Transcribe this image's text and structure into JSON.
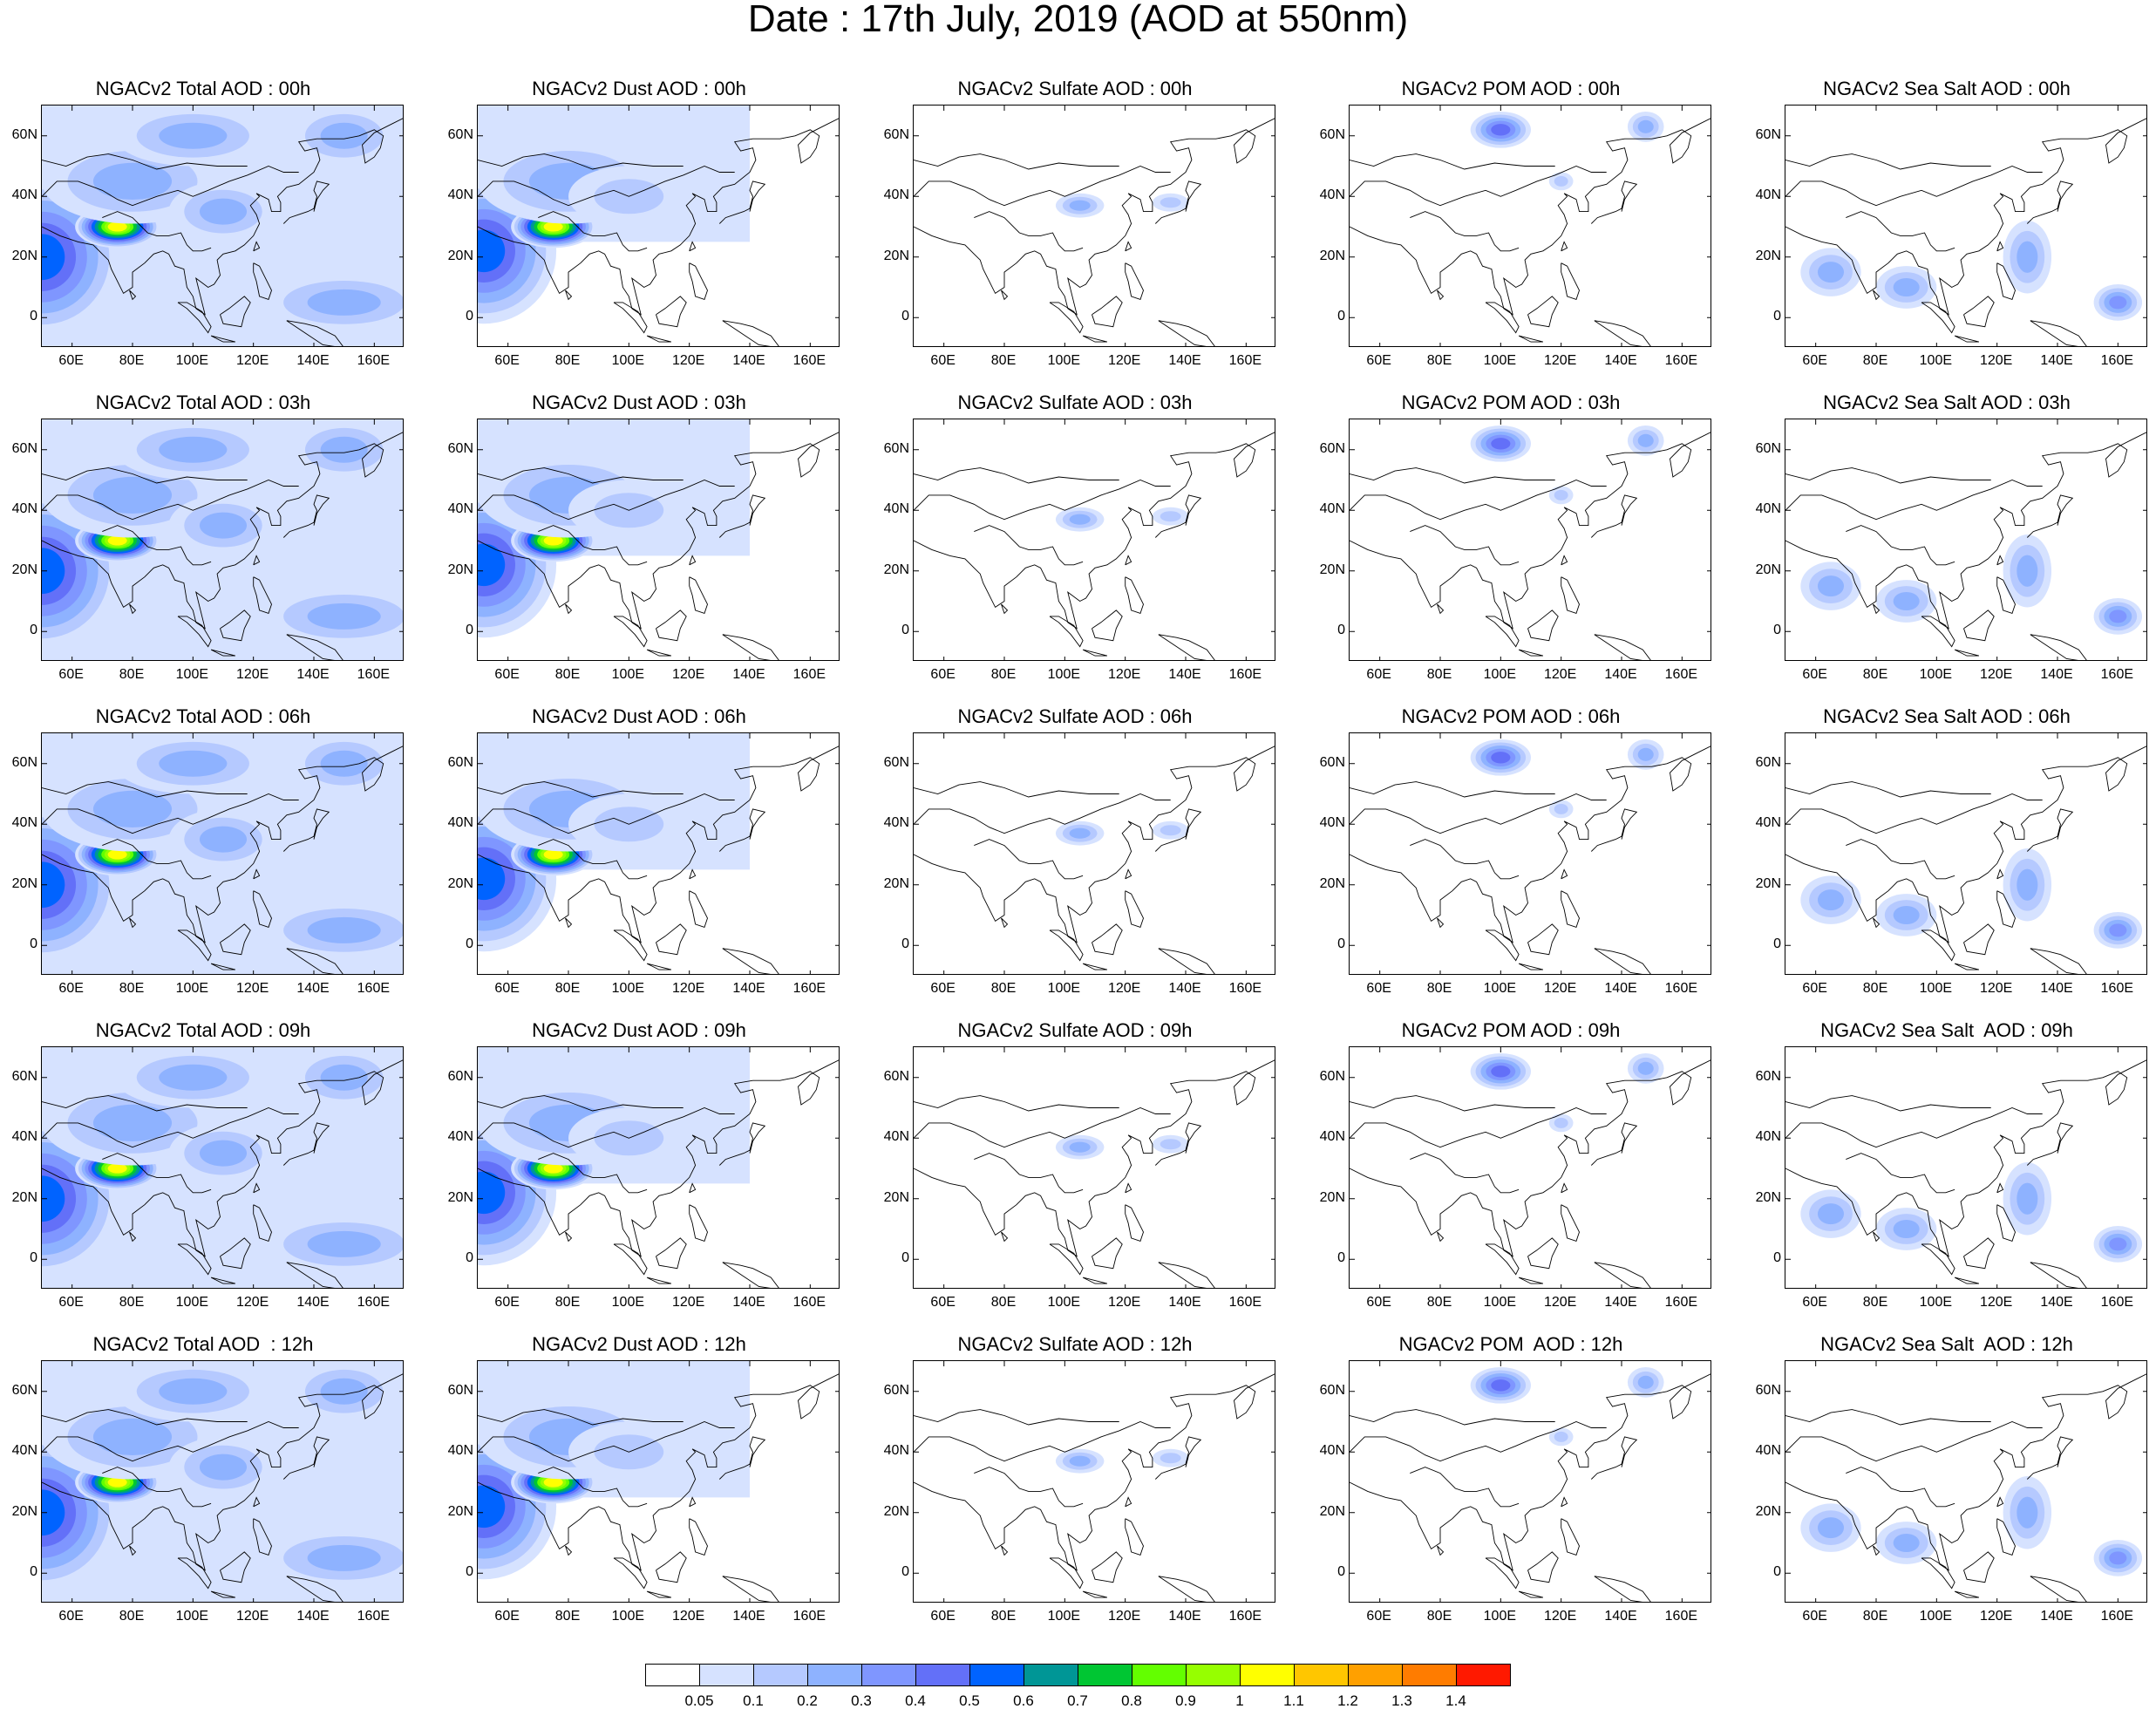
{
  "title": "Date : 17th July, 2019 (AOD at 550nm)",
  "panel_titles": [
    [
      "NGACv2 Total AOD : 00h",
      "NGACv2 Dust AOD : 00h",
      "NGACv2 Sulfate AOD : 00h",
      "NGACv2 POM AOD : 00h",
      "NGACv2 Sea Salt AOD : 00h"
    ],
    [
      "NGACv2 Total AOD : 03h",
      "NGACv2 Dust AOD : 03h",
      "NGACv2 Sulfate AOD : 03h",
      "NGACv2 POM AOD : 03h",
      "NGACv2 Sea Salt AOD : 03h"
    ],
    [
      "NGACv2 Total AOD : 06h",
      "NGACv2 Dust AOD : 06h",
      "NGACv2 Sulfate AOD : 06h",
      "NGACv2 POM AOD : 06h",
      "NGACv2 Sea Salt AOD : 06h"
    ],
    [
      "NGACv2 Total AOD : 09h",
      "NGACv2 Dust AOD : 09h",
      "NGACv2 Sulfate AOD : 09h",
      "NGACv2 POM AOD : 09h",
      "NGACv2 Sea Salt  AOD : 09h"
    ],
    [
      "NGACv2 Total AOD  : 12h",
      "NGACv2 Dust AOD : 12h",
      "NGACv2 Sulfate AOD : 12h",
      "NGACv2 POM  AOD : 12h",
      "NGACv2 Sea Salt  AOD : 12h"
    ]
  ],
  "species": [
    "total",
    "dust",
    "sulfate",
    "pom",
    "seasalt"
  ],
  "x_tick_labels": [
    "60E",
    "80E",
    "100E",
    "120E",
    "140E",
    "160E"
  ],
  "x_tick_values": [
    60,
    80,
    100,
    120,
    140,
    160
  ],
  "y_tick_labels": [
    "60N",
    "40N",
    "20N",
    "0"
  ],
  "y_tick_values": [
    60,
    40,
    20,
    0
  ],
  "lon_range": [
    50,
    170
  ],
  "lat_range": [
    -10,
    70
  ],
  "colorbar": {
    "labels": [
      "0.05",
      "0.1",
      "0.2",
      "0.3",
      "0.4",
      "0.5",
      "0.6",
      "0.7",
      "0.8",
      "0.9",
      "1",
      "1.1",
      "1.2",
      "1.3",
      "1.4"
    ],
    "colors": [
      "#ffffff",
      "#d6e2ff",
      "#b5c9ff",
      "#8eb2ff",
      "#7f96ff",
      "#6370f8",
      "#0063ff",
      "#009696",
      "#00c633",
      "#63ff00",
      "#96ff00",
      "#ffff00",
      "#ffc600",
      "#ffa000",
      "#ff7c00",
      "#ff1900"
    ]
  },
  "chart_data": {
    "type": "heatmap",
    "description_fields": "AOD at 550nm contour maps over Asia, 5 species x 5 forecast hours",
    "xlabel": "",
    "ylabel": "",
    "xlim": [
      50,
      170
    ],
    "ylim": [
      -10,
      70
    ],
    "levels": [
      0.05,
      0.1,
      0.2,
      0.3,
      0.4,
      0.5,
      0.6,
      0.7,
      0.8,
      0.9,
      1,
      1.1,
      1.2,
      1.3,
      1.4
    ],
    "hours": [
      "00h",
      "03h",
      "06h",
      "09h",
      "12h"
    ],
    "features": {
      "total": [
        {
          "lon": 50,
          "lat": 20,
          "value": 0.5
        },
        {
          "lon": 75,
          "lat": 30,
          "value": 1.0
        },
        {
          "lon": 80,
          "lat": 45,
          "value": 0.2
        },
        {
          "lon": 100,
          "lat": 60,
          "value": 0.2
        },
        {
          "lon": 110,
          "lat": 35,
          "value": 0.2
        },
        {
          "lon": 150,
          "lat": 60,
          "value": 0.2
        },
        {
          "lon": 150,
          "lat": 5,
          "value": 0.2
        }
      ],
      "dust": [
        {
          "lon": 52,
          "lat": 22,
          "value": 0.5
        },
        {
          "lon": 75,
          "lat": 30,
          "value": 1.0
        },
        {
          "lon": 80,
          "lat": 45,
          "value": 0.2
        },
        {
          "lon": 100,
          "lat": 40,
          "value": 0.1
        }
      ],
      "sulfate": [
        {
          "lon": 105,
          "lat": 37,
          "value": 0.2
        },
        {
          "lon": 135,
          "lat": 38,
          "value": 0.1
        }
      ],
      "pom": [
        {
          "lon": 100,
          "lat": 62,
          "value": 0.4
        },
        {
          "lon": 148,
          "lat": 63,
          "value": 0.2
        },
        {
          "lon": 120,
          "lat": 45,
          "value": 0.1
        }
      ],
      "seasalt": [
        {
          "lon": 65,
          "lat": 15,
          "value": 0.2
        },
        {
          "lon": 90,
          "lat": 10,
          "value": 0.2
        },
        {
          "lon": 130,
          "lat": 20,
          "value": 0.2
        },
        {
          "lon": 160,
          "lat": 5,
          "value": 0.3
        }
      ]
    }
  }
}
